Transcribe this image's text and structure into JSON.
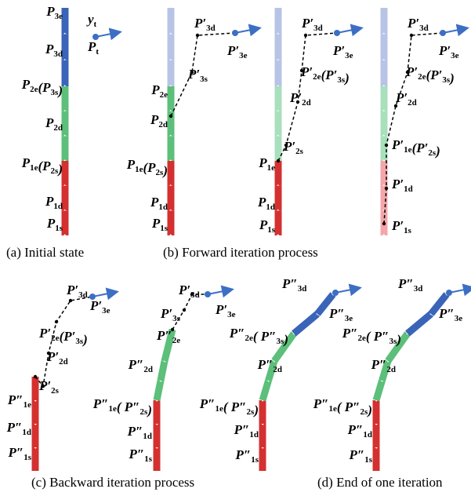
{
  "panels": [
    {
      "labels": [
        [
          {
            "t": "P",
            "s": "3e"
          }
        ],
        [
          {
            "t": "P",
            "s": "3d"
          }
        ],
        [
          {
            "t": "P",
            "s": "2e"
          },
          {
            "t": "(P",
            "s": "3s"
          },
          {
            "t": ")"
          }
        ],
        [
          {
            "t": "P",
            "s": "2d"
          }
        ],
        [
          {
            "t": "P",
            "s": "1e"
          },
          {
            "t": "(P",
            "s": "2s"
          },
          {
            "t": ")"
          }
        ],
        [
          {
            "t": "P",
            "s": "1d"
          }
        ],
        [
          {
            "t": "P",
            "s": "1s"
          }
        ],
        [
          {
            "t": "y",
            "s": "t"
          }
        ],
        [
          {
            "t": "P",
            "s": "t"
          }
        ]
      ]
    },
    {
      "labels": [
        [
          {
            "t": "P′",
            "s": "3d"
          }
        ],
        [
          {
            "t": "P′",
            "s": "3e"
          }
        ],
        [
          {
            "t": "P′",
            "s": "3s"
          }
        ],
        [
          {
            "t": "P",
            "s": "2e"
          }
        ],
        [
          {
            "t": "P",
            "s": "2d"
          }
        ],
        [
          {
            "t": "P",
            "s": "1e"
          },
          {
            "t": "(P",
            "s": "2s"
          },
          {
            "t": ")"
          }
        ],
        [
          {
            "t": "P",
            "s": "1d"
          }
        ],
        [
          {
            "t": "P",
            "s": "1s"
          }
        ]
      ]
    },
    {
      "labels": [
        [
          {
            "t": "P′",
            "s": "3d"
          }
        ],
        [
          {
            "t": "P′",
            "s": "3e"
          }
        ],
        [
          {
            "t": "P′",
            "s": "2e"
          },
          {
            "t": "(P′",
            "s": "3s"
          },
          {
            "t": ")"
          }
        ],
        [
          {
            "t": "P′",
            "s": "2d"
          }
        ],
        [
          {
            "t": "P′",
            "s": "2s"
          }
        ],
        [
          {
            "t": "P",
            "s": "1e"
          }
        ],
        [
          {
            "t": "P",
            "s": "1d"
          }
        ],
        [
          {
            "t": "P",
            "s": "1s"
          }
        ]
      ]
    },
    {
      "labels": [
        [
          {
            "t": "P′",
            "s": "3d"
          }
        ],
        [
          {
            "t": "P′",
            "s": "3e"
          }
        ],
        [
          {
            "t": "P′",
            "s": "2e"
          },
          {
            "t": "(P′",
            "s": "3s"
          },
          {
            "t": ")"
          }
        ],
        [
          {
            "t": "P′",
            "s": "2d"
          }
        ],
        [
          {
            "t": "P′",
            "s": "1e"
          },
          {
            "t": "(P′",
            "s": "2s"
          },
          {
            "t": ")"
          }
        ],
        [
          {
            "t": "P′",
            "s": "1d"
          }
        ],
        [
          {
            "t": "P′",
            "s": "1s"
          }
        ]
      ]
    },
    {
      "labels": [
        [
          {
            "t": "P′",
            "s": "3d"
          }
        ],
        [
          {
            "t": "P′",
            "s": "3e"
          }
        ],
        [
          {
            "t": "P′",
            "s": "2e"
          },
          {
            "t": "(P′",
            "s": "3s"
          },
          {
            "t": ")"
          }
        ],
        [
          {
            "t": "P′",
            "s": "2d"
          }
        ],
        [
          {
            "t": "P′",
            "s": "2s"
          }
        ],
        [
          {
            "t": "P″",
            "s": "1e"
          }
        ],
        [
          {
            "t": "P″",
            "s": "1d"
          }
        ],
        [
          {
            "t": "P″",
            "s": "1s"
          }
        ]
      ]
    },
    {
      "labels": [
        [
          {
            "t": "P′",
            "s": "3d"
          }
        ],
        [
          {
            "t": "P′",
            "s": "3e"
          }
        ],
        [
          {
            "t": "P′",
            "s": "3s"
          }
        ],
        [
          {
            "t": "P″",
            "s": "2e"
          }
        ],
        [
          {
            "t": "P″",
            "s": "2d"
          }
        ],
        [
          {
            "t": "P″",
            "s": "1e"
          },
          {
            "t": "( P″",
            "s": "2s"
          },
          {
            "t": ")"
          }
        ],
        [
          {
            "t": "P″",
            "s": "1d"
          }
        ],
        [
          {
            "t": "P″",
            "s": "1s"
          }
        ]
      ]
    },
    {
      "labels": [
        [
          {
            "t": "P″",
            "s": "3d"
          }
        ],
        [
          {
            "t": "P″",
            "s": "3e"
          }
        ],
        [
          {
            "t": "P″",
            "s": "2e"
          },
          {
            "t": "( P″",
            "s": "3s"
          },
          {
            "t": ")"
          }
        ],
        [
          {
            "t": "P″",
            "s": "2d"
          }
        ],
        [
          {
            "t": "P″",
            "s": "1e"
          },
          {
            "t": "( P″",
            "s": "2s"
          },
          {
            "t": ")"
          }
        ],
        [
          {
            "t": "P″",
            "s": "1d"
          }
        ],
        [
          {
            "t": "P″",
            "s": "1s"
          }
        ]
      ]
    },
    {
      "labels": [
        [
          {
            "t": "P″",
            "s": "3d"
          }
        ],
        [
          {
            "t": "P″",
            "s": "3e"
          }
        ],
        [
          {
            "t": "P″",
            "s": "2e"
          },
          {
            "t": "( P″",
            "s": "3s"
          },
          {
            "t": ")"
          }
        ],
        [
          {
            "t": "P″",
            "s": "2d"
          }
        ],
        [
          {
            "t": "P″",
            "s": "1e"
          },
          {
            "t": "( P″",
            "s": "2s"
          },
          {
            "t": ")"
          }
        ],
        [
          {
            "t": "P″",
            "s": "1d"
          }
        ],
        [
          {
            "t": "P″",
            "s": "1s"
          }
        ]
      ]
    }
  ],
  "captions": [
    "(a) Initial state",
    "(b) Forward iteration process",
    "(c) Backward iteration process",
    "(d) End of one iteration"
  ]
}
